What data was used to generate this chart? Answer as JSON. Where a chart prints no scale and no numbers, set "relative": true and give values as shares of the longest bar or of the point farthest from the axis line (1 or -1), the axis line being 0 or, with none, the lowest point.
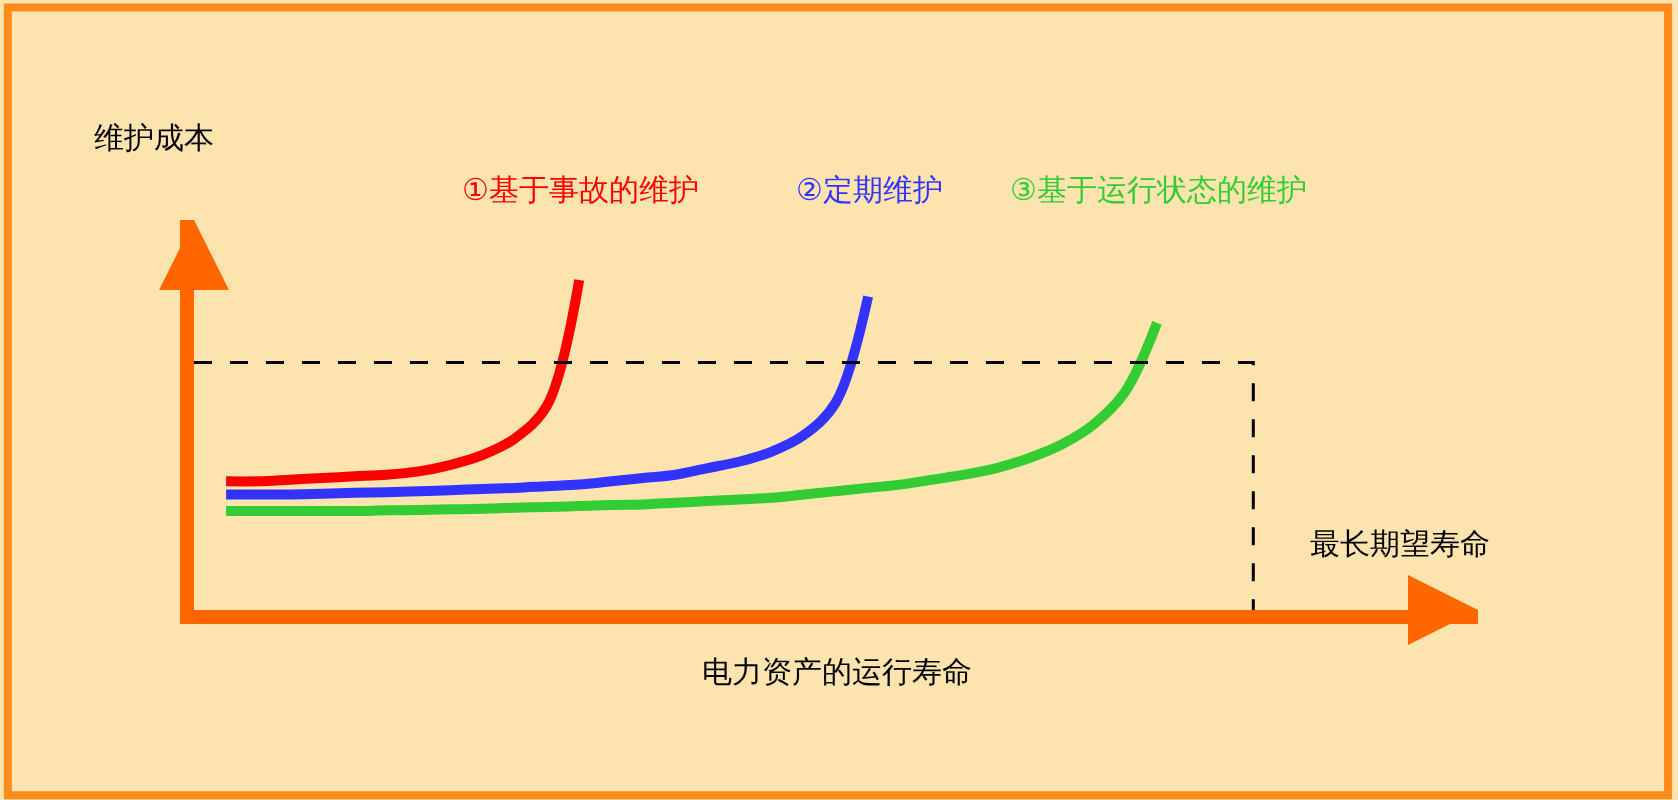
{
  "chart_data": {
    "type": "line",
    "relative": true,
    "xlabel": "电力资产的运行寿命",
    "ylabel": "维护成本",
    "legend": false,
    "grid": false,
    "marker": "none",
    "categories": [
      null,
      null,
      null,
      null,
      null,
      null,
      null,
      null,
      null,
      null,
      null,
      null,
      null,
      null,
      null,
      null,
      null,
      null,
      null,
      null,
      null,
      null,
      null,
      null,
      null,
      null,
      null,
      null,
      null,
      null,
      null,
      null,
      null,
      null,
      null,
      null,
      null,
      null,
      null,
      null,
      null
    ],
    "series": [
      {
        "name": "①基于事故的维护",
        "color": "#ff0000",
        "values": [
          null,
          0.39,
          0.39,
          0.395,
          0.4,
          0.405,
          0.41,
          0.42,
          0.44,
          0.47,
          0.52,
          0.62,
          1.0,
          null,
          null,
          null,
          null,
          null,
          null,
          null,
          null,
          null,
          null,
          null,
          null,
          null,
          null,
          null,
          null,
          null,
          null,
          null,
          null,
          null,
          null,
          null,
          null,
          null,
          null,
          null,
          null
        ]
      },
      {
        "name": "②定期维护",
        "color": "#3333ff",
        "values": [
          null,
          0.35,
          0.35,
          0.35,
          0.352,
          0.355,
          0.357,
          0.36,
          0.363,
          0.367,
          0.37,
          0.375,
          0.38,
          0.39,
          0.4,
          0.41,
          0.43,
          0.45,
          0.48,
          0.53,
          0.63,
          0.95,
          null,
          null,
          null,
          null,
          null,
          null,
          null,
          null,
          null,
          null,
          null,
          null,
          null,
          null,
          null,
          null,
          null,
          null,
          null
        ]
      },
      {
        "name": "③基于运行状态的维护",
        "color": "#33cc33",
        "values": [
          null,
          0.3,
          0.3,
          0.3,
          0.3,
          0.3,
          0.302,
          0.303,
          0.305,
          0.307,
          0.31,
          0.312,
          0.315,
          0.318,
          0.32,
          0.325,
          0.33,
          0.335,
          0.34,
          0.35,
          0.36,
          0.37,
          0.38,
          0.395,
          0.41,
          0.43,
          0.46,
          0.5,
          0.56,
          0.66,
          0.87,
          null,
          null,
          null,
          null,
          null,
          null,
          null,
          null,
          null,
          null
        ]
      },
      {
        "type": "step",
        "color": "#000000",
        "line_style": "dashed",
        "values": [
          0.75,
          0.75,
          0.75,
          0.75,
          0.75,
          0.75,
          0.75,
          0.75,
          0.75,
          0.75,
          0.75,
          0.75,
          0.75,
          0.75,
          0.75,
          0.75,
          0.75,
          0.75,
          0.75,
          0.75,
          0.75,
          0.75,
          0.75,
          0.75,
          0.75,
          0.75,
          0.75,
          0.75,
          0.75,
          0.75,
          0.75,
          0.75,
          0.75,
          0,
          null,
          null,
          null,
          null,
          null,
          null,
          null
        ]
      }
    ],
    "annotations": [
      "最长期望寿命"
    ]
  }
}
